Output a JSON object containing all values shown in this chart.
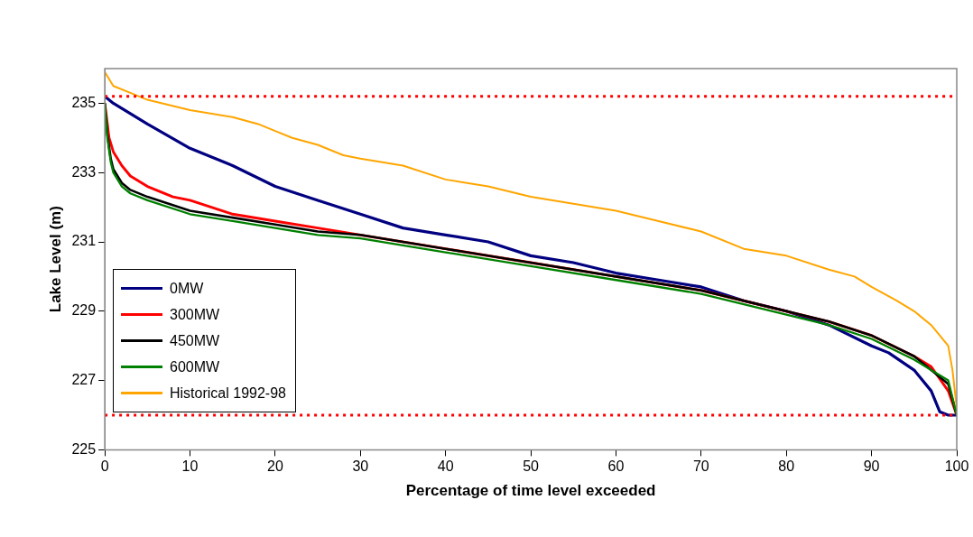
{
  "chart_data": {
    "type": "line",
    "xlabel": "Percentage of time level exceeded",
    "ylabel": "Lake Level (m)",
    "xlim": [
      0,
      100
    ],
    "xticks": [
      0,
      10,
      20,
      30,
      40,
      50,
      60,
      70,
      80,
      90,
      100
    ],
    "ylim": [
      225,
      236
    ],
    "yticks": [
      225,
      227,
      229,
      231,
      233,
      235
    ],
    "grid": false,
    "legend": "left",
    "marker": "none",
    "line_style": "solid",
    "ref_lines": [
      {
        "axis": "y",
        "value": 235.2,
        "color": "#ff0000",
        "line_style": "dotted"
      },
      {
        "axis": "y",
        "value": 226,
        "color": "#ff0000",
        "line_style": "dotted"
      }
    ],
    "series": [
      {
        "name": "0MW",
        "color": "#000080",
        "x": [
          0,
          1,
          3,
          5,
          10,
          15,
          20,
          25,
          30,
          35,
          40,
          45,
          50,
          55,
          60,
          65,
          70,
          75,
          80,
          85,
          90,
          92,
          95,
          97,
          98,
          99,
          100
        ],
        "values": [
          235.2,
          235.0,
          234.7,
          234.4,
          233.7,
          233.2,
          232.6,
          232.2,
          231.8,
          231.4,
          231.2,
          231.0,
          230.6,
          230.4,
          230.1,
          229.9,
          229.7,
          229.3,
          229.0,
          228.6,
          228.0,
          227.8,
          227.3,
          226.7,
          226.1,
          226.0,
          226.0
        ]
      },
      {
        "name": "300MW",
        "color": "#ff0000",
        "x": [
          0,
          0.5,
          1,
          2,
          3,
          5,
          8,
          10,
          15,
          20,
          25,
          30,
          40,
          50,
          60,
          70,
          80,
          85,
          90,
          95,
          97,
          99,
          100
        ],
        "values": [
          235.0,
          234.0,
          233.6,
          233.2,
          232.9,
          232.6,
          232.3,
          232.2,
          231.8,
          231.6,
          231.4,
          231.2,
          230.8,
          230.4,
          230.0,
          229.6,
          229.0,
          228.7,
          228.3,
          227.7,
          227.4,
          226.7,
          226.0
        ]
      },
      {
        "name": "450MW",
        "color": "#000000",
        "x": [
          0,
          0.3,
          0.7,
          1,
          2,
          3,
          5,
          10,
          15,
          20,
          25,
          30,
          40,
          50,
          60,
          70,
          80,
          85,
          90,
          95,
          97,
          99,
          100
        ],
        "values": [
          235.0,
          234.1,
          233.4,
          233.1,
          232.7,
          232.5,
          232.3,
          231.9,
          231.7,
          231.5,
          231.3,
          231.2,
          230.8,
          230.4,
          230.0,
          229.6,
          229.0,
          228.7,
          228.3,
          227.7,
          227.3,
          226.9,
          226.0
        ]
      },
      {
        "name": "600MW",
        "color": "#008000",
        "x": [
          0,
          0.3,
          0.7,
          1,
          2,
          3,
          5,
          10,
          15,
          20,
          25,
          30,
          40,
          50,
          60,
          70,
          80,
          85,
          90,
          95,
          97,
          99,
          100
        ],
        "values": [
          235.0,
          234.0,
          233.3,
          233.0,
          232.6,
          232.4,
          232.2,
          231.8,
          231.6,
          231.4,
          231.2,
          231.1,
          230.7,
          230.3,
          229.9,
          229.5,
          228.9,
          228.6,
          228.2,
          227.6,
          227.3,
          227.0,
          226.0
        ]
      },
      {
        "name": "Historical 1992-98",
        "color": "#ffa500",
        "x": [
          0,
          1,
          3,
          5,
          10,
          15,
          18,
          20,
          22,
          25,
          28,
          30,
          35,
          40,
          45,
          50,
          55,
          60,
          65,
          70,
          75,
          80,
          85,
          88,
          90,
          93,
          95,
          97,
          98,
          99,
          99.5,
          100
        ],
        "values": [
          235.9,
          235.5,
          235.3,
          235.1,
          234.8,
          234.6,
          234.4,
          234.2,
          234.0,
          233.8,
          233.5,
          233.4,
          233.2,
          232.8,
          232.6,
          232.3,
          232.1,
          231.9,
          231.6,
          231.3,
          230.8,
          230.6,
          230.2,
          230.0,
          229.7,
          229.3,
          229.0,
          228.6,
          228.3,
          228.0,
          227.3,
          226.2
        ]
      }
    ]
  }
}
